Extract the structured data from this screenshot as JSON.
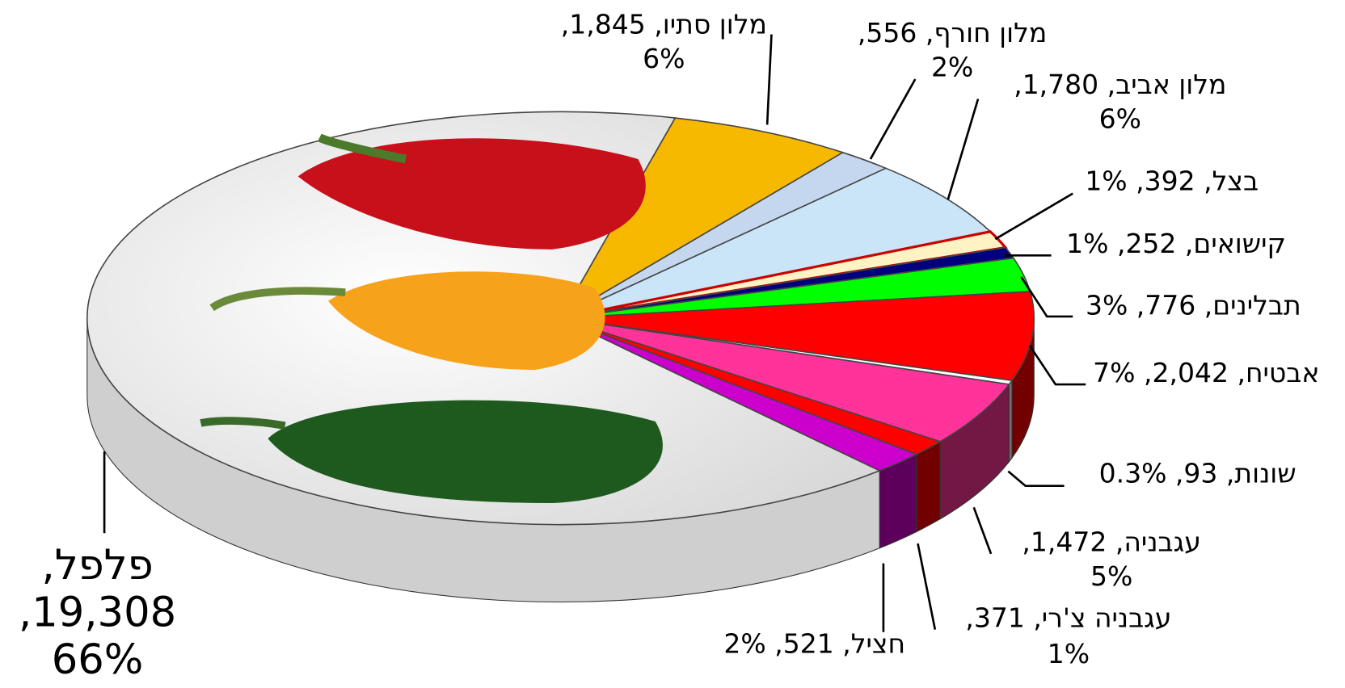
{
  "chart_data": {
    "type": "pie3d",
    "categories": [
      "מלון סתיו",
      "מלון חורף",
      "מלון אביב",
      "בצל",
      "קישואים",
      "תבלינים",
      "אבטיח",
      "שונות",
      "עגבניה",
      "עגבניה צ'רי",
      "חציל",
      "פלפל"
    ],
    "values": [
      1845,
      556,
      1780,
      392,
      252,
      776,
      2042,
      93,
      1472,
      371,
      521,
      19308
    ],
    "data_labels": [
      [
        "מלון סתיו, 1,845,",
        "6%"
      ],
      [
        "מלון חורף, 556,",
        "2%"
      ],
      [
        "מלון אביב, 1,780,",
        "6%"
      ],
      [
        "בצל, 392, 1%"
      ],
      [
        "קישואים, 252, 1%"
      ],
      [
        "תבלינים, 776, 3%"
      ],
      [
        "אבטיח, 2,042, 7%"
      ],
      [
        "שונות, 93, 0.3%"
      ],
      [
        "עגבניה, 1,472,",
        "5%"
      ],
      [
        "עגבניה צ'רי, 371,",
        "1%"
      ],
      [
        "חציל, 521, 2%"
      ],
      [
        "פלפל,",
        "19,308,",
        "66%"
      ]
    ],
    "colors": [
      "#f7b900",
      "#c4d7ee",
      "#c9e5f7",
      "#fff3c4",
      "#00007f",
      "#00ff00",
      "#ff0000",
      "#ffffff",
      "#ff3399",
      "#ff0000",
      "#cc00cc",
      "#f2f2f2"
    ]
  }
}
